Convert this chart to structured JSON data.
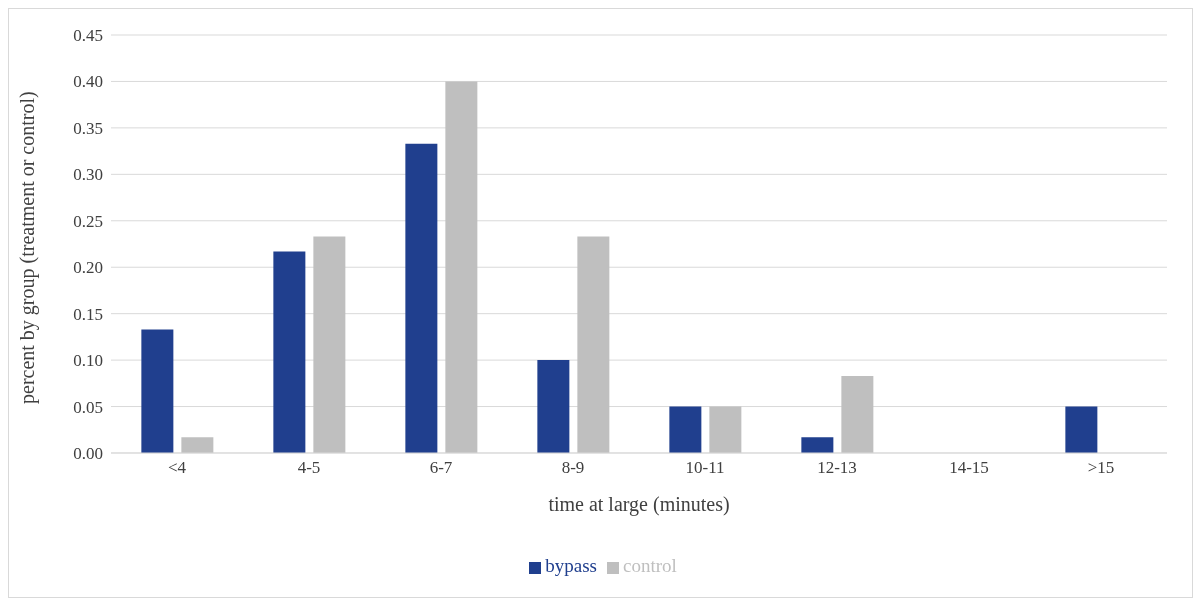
{
  "chart_data": {
    "type": "bar",
    "xlabel": "time at large (minutes)",
    "ylabel": "percent  by group (treatment or control)",
    "categories": [
      "<4",
      "4-5",
      "6-7",
      "8-9",
      "10-11",
      "12-13",
      "14-15",
      ">15"
    ],
    "series": [
      {
        "name": "bypass",
        "color": "#203f8e",
        "values": [
          0.133,
          0.217,
          0.333,
          0.1,
          0.05,
          0.017,
          0,
          0.05
        ]
      },
      {
        "name": "control",
        "color": "#bfbfbf",
        "values": [
          0.017,
          0.233,
          0.4,
          0.233,
          0.05,
          0.083,
          0,
          0
        ]
      }
    ],
    "ylim": [
      0,
      0.45
    ],
    "yticks": [
      {
        "value": 0,
        "label": "0.00"
      },
      {
        "value": 0.05,
        "label": "0.05"
      },
      {
        "value": 0.1,
        "label": "0.10"
      },
      {
        "value": 0.15,
        "label": "0.15"
      },
      {
        "value": 0.2,
        "label": "0.20"
      },
      {
        "value": 0.25,
        "label": "0.25"
      },
      {
        "value": 0.3,
        "label": "0.30"
      },
      {
        "value": 0.35,
        "label": "0.35"
      },
      {
        "value": 0.4,
        "label": "0.40"
      },
      {
        "value": 0.45,
        "label": "0.45"
      }
    ],
    "grid": "y",
    "legend": "bottom"
  }
}
